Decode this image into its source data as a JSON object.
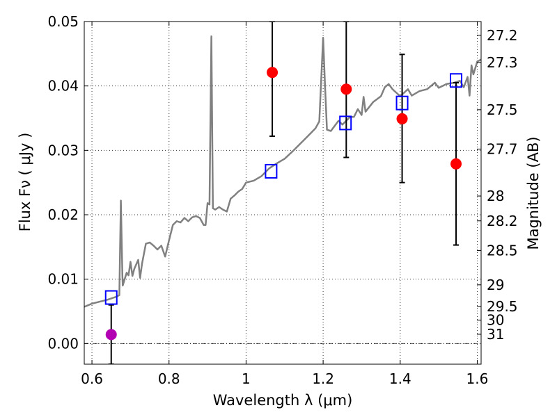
{
  "chart_data": {
    "type": "scatter",
    "xlabel": "Wavelength  λ (μm)",
    "ylabel": "Flux  Fν  ( μJy )",
    "ylabel_right": "Magnitude (AB)",
    "xlim": [
      0.58,
      1.61
    ],
    "ylim": [
      -0.0032,
      0.05
    ],
    "grid": true,
    "x_ticks": [
      0.6,
      0.8,
      1.0,
      1.2,
      1.4,
      1.6
    ],
    "x_tick_labels": [
      "0.6",
      "0.8",
      "1",
      "1.2",
      "1.4",
      "1.6"
    ],
    "y_ticks": [
      0.0,
      0.01,
      0.02,
      0.03,
      0.04,
      0.05
    ],
    "y_tick_labels": [
      "0.00",
      "0.01",
      "0.02",
      "0.03",
      "0.04",
      "0.05"
    ],
    "right_ticks": [
      {
        "mag": 27.2,
        "label": "27.2"
      },
      {
        "mag": 27.3,
        "label": "27.3"
      },
      {
        "mag": 27.5,
        "label": "27.5"
      },
      {
        "mag": 27.7,
        "label": "27.7"
      },
      {
        "mag": 28,
        "label": "28"
      },
      {
        "mag": 28.2,
        "label": "28.2"
      },
      {
        "mag": 28.5,
        "label": "28.5"
      },
      {
        "mag": 29,
        "label": "29"
      },
      {
        "mag": 29.5,
        "label": "29.5"
      },
      {
        "mag": 30,
        "label": "30"
      },
      {
        "mag": 31,
        "label": "31"
      }
    ],
    "series": [
      {
        "kind": "line",
        "color": "#808080",
        "points": [
          [
            0.58,
            0.0057
          ],
          [
            0.6,
            0.0062
          ],
          [
            0.62,
            0.0065
          ],
          [
            0.64,
            0.0068
          ],
          [
            0.66,
            0.0072
          ],
          [
            0.671,
            0.0075
          ],
          [
            0.675,
            0.0222
          ],
          [
            0.679,
            0.0105
          ],
          [
            0.68,
            0.009
          ],
          [
            0.69,
            0.011
          ],
          [
            0.695,
            0.0106
          ],
          [
            0.7,
            0.0127
          ],
          [
            0.705,
            0.0105
          ],
          [
            0.71,
            0.0116
          ],
          [
            0.72,
            0.013
          ],
          [
            0.725,
            0.0102
          ],
          [
            0.73,
            0.0124
          ],
          [
            0.74,
            0.0155
          ],
          [
            0.75,
            0.0157
          ],
          [
            0.76,
            0.0152
          ],
          [
            0.77,
            0.0146
          ],
          [
            0.78,
            0.0152
          ],
          [
            0.79,
            0.0135
          ],
          [
            0.8,
            0.016
          ],
          [
            0.81,
            0.0184
          ],
          [
            0.82,
            0.019
          ],
          [
            0.83,
            0.0188
          ],
          [
            0.84,
            0.0195
          ],
          [
            0.85,
            0.019
          ],
          [
            0.86,
            0.0196
          ],
          [
            0.87,
            0.0198
          ],
          [
            0.88,
            0.0195
          ],
          [
            0.89,
            0.0184
          ],
          [
            0.895,
            0.0184
          ],
          [
            0.9,
            0.0218
          ],
          [
            0.905,
            0.0216
          ],
          [
            0.91,
            0.0477
          ],
          [
            0.914,
            0.021
          ],
          [
            0.92,
            0.0208
          ],
          [
            0.93,
            0.0212
          ],
          [
            0.94,
            0.0208
          ],
          [
            0.95,
            0.0205
          ],
          [
            0.96,
            0.0225
          ],
          [
            0.97,
            0.023
          ],
          [
            0.98,
            0.0236
          ],
          [
            0.99,
            0.024
          ],
          [
            1.0,
            0.025
          ],
          [
            1.02,
            0.0253
          ],
          [
            1.04,
            0.026
          ],
          [
            1.06,
            0.0272
          ],
          [
            1.08,
            0.028
          ],
          [
            1.1,
            0.0287
          ],
          [
            1.12,
            0.0298
          ],
          [
            1.14,
            0.031
          ],
          [
            1.16,
            0.0322
          ],
          [
            1.18,
            0.0334
          ],
          [
            1.19,
            0.0345
          ],
          [
            1.2,
            0.0475
          ],
          [
            1.205,
            0.0398
          ],
          [
            1.21,
            0.0332
          ],
          [
            1.22,
            0.033
          ],
          [
            1.24,
            0.0346
          ],
          [
            1.25,
            0.034
          ],
          [
            1.27,
            0.0352
          ],
          [
            1.28,
            0.0352
          ],
          [
            1.29,
            0.0364
          ],
          [
            1.3,
            0.0355
          ],
          [
            1.305,
            0.0383
          ],
          [
            1.31,
            0.036
          ],
          [
            1.33,
            0.0375
          ],
          [
            1.35,
            0.0384
          ],
          [
            1.36,
            0.0398
          ],
          [
            1.37,
            0.0403
          ],
          [
            1.38,
            0.0395
          ],
          [
            1.4,
            0.0384
          ],
          [
            1.42,
            0.0395
          ],
          [
            1.43,
            0.0385
          ],
          [
            1.45,
            0.0392
          ],
          [
            1.47,
            0.0395
          ],
          [
            1.49,
            0.0405
          ],
          [
            1.5,
            0.0397
          ],
          [
            1.52,
            0.0403
          ],
          [
            1.54,
            0.0405
          ],
          [
            1.555,
            0.0408
          ],
          [
            1.565,
            0.0398
          ],
          [
            1.575,
            0.0414
          ],
          [
            1.58,
            0.0385
          ],
          [
            1.585,
            0.0432
          ],
          [
            1.59,
            0.0418
          ],
          [
            1.6,
            0.0438
          ],
          [
            1.61,
            0.0441
          ]
        ]
      },
      {
        "kind": "markers",
        "marker": "circle",
        "color": "#ff0000",
        "points": [
          {
            "x": 1.068,
            "y": 0.0421,
            "ylow": 0.0322,
            "yhigh": 0.05
          },
          {
            "x": 1.26,
            "y": 0.0395,
            "ylow": 0.0289,
            "yhigh": 0.05
          },
          {
            "x": 1.405,
            "y": 0.0349,
            "ylow": 0.025,
            "yhigh": 0.0449
          },
          {
            "x": 1.545,
            "y": 0.0279,
            "ylow": 0.0153,
            "yhigh": 0.0405
          }
        ]
      },
      {
        "kind": "markers",
        "marker": "circle",
        "color": "#b300b3",
        "points": [
          {
            "x": 0.65,
            "y": 0.0014,
            "ylow": -0.0032,
            "yhigh": 0.006
          }
        ]
      },
      {
        "kind": "markers",
        "marker": "square",
        "color": "#0000ff",
        "points": [
          {
            "x": 0.65,
            "y": 0.0071
          },
          {
            "x": 1.065,
            "y": 0.0267
          },
          {
            "x": 1.258,
            "y": 0.0342
          },
          {
            "x": 1.405,
            "y": 0.0373
          },
          {
            "x": 1.545,
            "y": 0.0408
          }
        ]
      }
    ]
  }
}
